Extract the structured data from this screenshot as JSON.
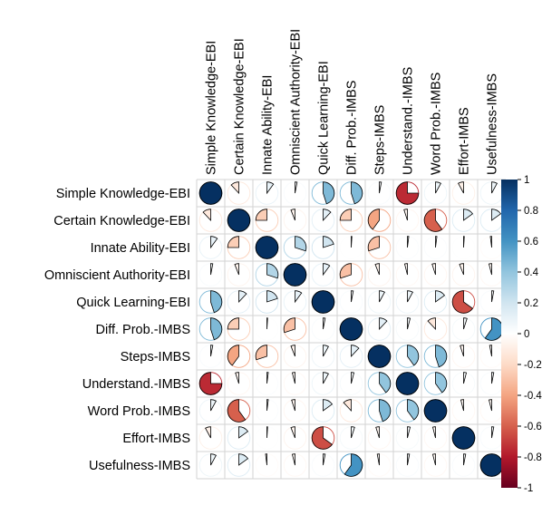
{
  "chart_data": {
    "type": "heatmap",
    "style": "corrplot-pie",
    "variables": [
      "Simple Knowledge-EBI",
      "Certain Knowledge-EBI",
      "Innate Ability-EBI",
      "Omniscient Authority-EBI",
      "Quick Learning-EBI",
      "Diff. Prob.-IMBS",
      "Steps-IMBS",
      "Understand.-IMBS",
      "Word Prob.-IMBS",
      "Effort-IMBS",
      "Usefulness-IMBS"
    ],
    "matrix": [
      [
        1.0,
        -0.12,
        0.1,
        0.03,
        0.45,
        0.45,
        0.03,
        -0.75,
        0.08,
        -0.08,
        0.08
      ],
      [
        -0.12,
        1.0,
        -0.25,
        -0.06,
        0.12,
        -0.25,
        -0.4,
        -0.05,
        -0.6,
        0.15,
        0.15
      ],
      [
        0.1,
        -0.25,
        1.0,
        0.3,
        0.2,
        0.01,
        -0.3,
        0.02,
        0.02,
        0.01,
        -0.02
      ],
      [
        0.03,
        -0.06,
        0.3,
        1.0,
        0.1,
        -0.3,
        -0.06,
        -0.04,
        -0.05,
        -0.06,
        -0.04
      ],
      [
        0.45,
        0.12,
        0.2,
        0.1,
        1.0,
        0.03,
        0.08,
        0.08,
        0.15,
        -0.65,
        0.03
      ],
      [
        0.45,
        -0.25,
        0.01,
        -0.3,
        0.03,
        1.0,
        0.12,
        0.04,
        -0.12,
        0.05,
        0.6
      ],
      [
        0.03,
        -0.4,
        -0.3,
        -0.06,
        0.08,
        0.12,
        1.0,
        0.4,
        0.45,
        -0.05,
        -0.03
      ],
      [
        -0.75,
        -0.05,
        0.02,
        -0.04,
        0.08,
        0.04,
        0.4,
        1.0,
        0.4,
        0.04,
        0.03
      ],
      [
        0.08,
        -0.6,
        0.02,
        -0.05,
        0.15,
        -0.12,
        0.45,
        0.4,
        1.0,
        -0.04,
        -0.04
      ],
      [
        -0.08,
        0.15,
        0.01,
        -0.06,
        -0.65,
        0.05,
        -0.05,
        0.04,
        -0.04,
        1.0,
        0.03
      ],
      [
        0.08,
        0.15,
        -0.02,
        -0.04,
        0.03,
        0.6,
        -0.03,
        0.03,
        -0.04,
        0.03,
        1.0
      ]
    ],
    "colorbar": {
      "ticks": [
        "1",
        "0.8",
        "0.6",
        "0.4",
        "0.2",
        "0",
        "-0.2",
        "-0.4",
        "-0.6",
        "-0.8",
        "-1"
      ],
      "range": [
        -1,
        1
      ]
    },
    "colors": {
      "neg_dark": "#67001F",
      "neg_mid": "#B2182B",
      "neg_light": "#F4A582",
      "neutral": "#FFFFFF",
      "pos_light": "#92C5DE",
      "pos_mid": "#2166AC",
      "pos_dark": "#053061",
      "grid": "#D3D3D3"
    }
  }
}
